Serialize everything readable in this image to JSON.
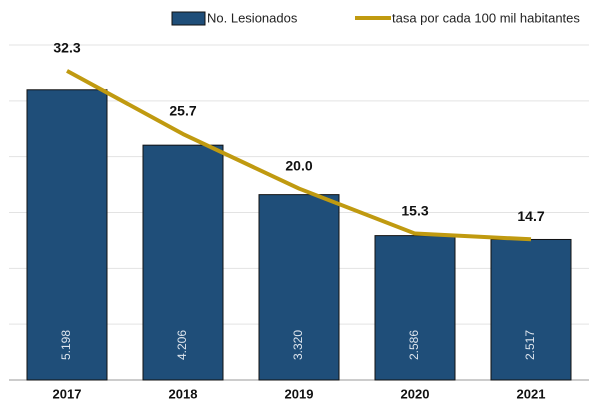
{
  "chart_data": {
    "type": "bar_line",
    "categories": [
      "2017",
      "2018",
      "2019",
      "2020",
      "2021"
    ],
    "series": [
      {
        "name": "No. Lesionados",
        "color": "#1f4e79",
        "type": "bar",
        "values": [
          5198,
          4206,
          3320,
          2586,
          2517
        ],
        "value_labels": [
          "5.198",
          "4.206",
          "3.320",
          "2.586",
          "2.517"
        ]
      },
      {
        "name": "tasa por cada 100 mil habitantes",
        "color": "#c09a10",
        "type": "line",
        "axis": "y2",
        "values": [
          32.3,
          25.7,
          20.0,
          15.3,
          14.7
        ],
        "value_labels": [
          "32.3",
          "25.7",
          "20.0",
          "15.3",
          "14.7"
        ]
      }
    ],
    "ylim": [
      0,
      6000
    ],
    "yticks": [
      0,
      1000,
      2000,
      3000,
      4000,
      5000,
      6000
    ],
    "y2lim": [
      0,
      35
    ],
    "grid": true,
    "legend": "top"
  }
}
